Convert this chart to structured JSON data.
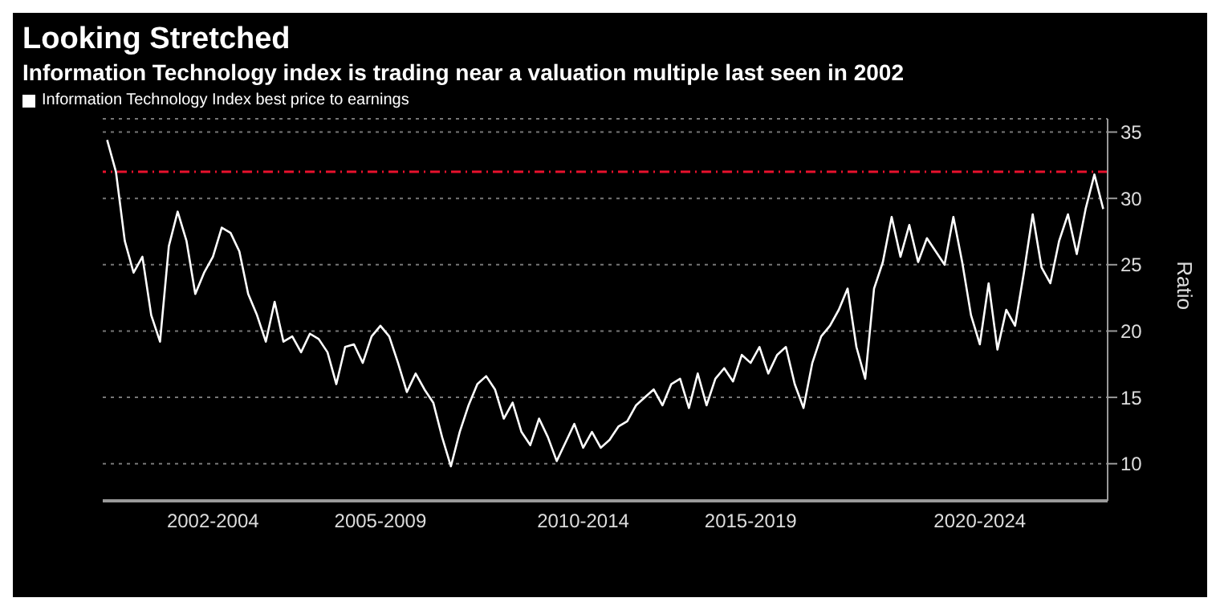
{
  "chart_data": {
    "type": "line",
    "title": "Looking Stretched",
    "subtitle": "Information Technology index is trading near a valuation multiple last seen in 2002",
    "ylabel": "Ratio",
    "categories": [
      null,
      null,
      null,
      null,
      null,
      null,
      null,
      null,
      null,
      null,
      null,
      null,
      "2002-2004",
      null,
      null,
      null,
      null,
      null,
      null,
      null,
      null,
      null,
      null,
      null,
      null,
      null,
      null,
      null,
      null,
      null,
      null,
      "2005-2009",
      null,
      null,
      null,
      null,
      null,
      null,
      null,
      null,
      null,
      null,
      null,
      null,
      null,
      null,
      null,
      null,
      null,
      null,
      null,
      null,
      null,
      null,
      "2010-2014",
      null,
      null,
      null,
      null,
      null,
      null,
      null,
      null,
      null,
      null,
      null,
      null,
      null,
      null,
      null,
      null,
      null,
      null,
      "2015-2019",
      null,
      null,
      null,
      null,
      null,
      null,
      null,
      null,
      null,
      null,
      null,
      null,
      null,
      null,
      null,
      null,
      null,
      null,
      null,
      null,
      null,
      null,
      null,
      null,
      null,
      "2020-2024",
      null,
      null,
      null,
      null,
      null,
      null,
      null,
      null,
      null,
      null,
      null,
      null,
      null,
      null
    ],
    "series": [
      {
        "name": "Information Technology Index best price to earnings",
        "color": "#ffffff",
        "values": [
          34.4,
          32.0,
          26.8,
          24.4,
          25.6,
          21.2,
          19.2,
          26.4,
          29.0,
          26.8,
          22.8,
          24.4,
          25.6,
          27.8,
          27.4,
          26.0,
          22.8,
          21.2,
          19.2,
          22.2,
          19.2,
          19.6,
          18.4,
          19.8,
          19.4,
          18.4,
          16.0,
          18.8,
          19.0,
          17.6,
          19.6,
          20.4,
          19.6,
          17.6,
          15.4,
          16.8,
          15.6,
          14.6,
          12.0,
          9.8,
          12.4,
          14.4,
          16.0,
          16.6,
          15.6,
          13.4,
          14.6,
          12.4,
          11.4,
          13.4,
          12.0,
          10.2,
          11.6,
          13.0,
          11.2,
          12.4,
          11.2,
          11.8,
          12.8,
          13.2,
          14.4,
          15.0,
          15.6,
          14.4,
          16.0,
          16.4,
          14.2,
          16.8,
          14.4,
          16.4,
          17.2,
          16.2,
          18.2,
          17.6,
          18.8,
          16.8,
          18.2,
          18.8,
          16.0,
          14.2,
          17.6,
          19.6,
          20.4,
          21.6,
          23.2,
          18.8,
          16.4,
          23.2,
          25.2,
          28.6,
          25.6,
          28.0,
          25.2,
          27.0,
          26.0,
          25.0,
          28.6,
          25.2,
          21.2,
          19.0,
          23.6,
          18.6,
          21.6,
          20.4,
          24.4,
          28.8,
          24.8,
          23.6,
          26.8,
          28.8,
          25.8,
          29.2,
          31.8,
          29.2
        ]
      }
    ],
    "ylim": [
      7.2,
      36
    ],
    "yticks": [
      10,
      15,
      20,
      25,
      30,
      35
    ],
    "ref_lines": [
      {
        "axis": "y",
        "value": 32,
        "color": "#e8112d",
        "line_style": "dashdot"
      }
    ],
    "grid": "y",
    "legend": "top left",
    "marker": "none",
    "line_style": "solid"
  }
}
